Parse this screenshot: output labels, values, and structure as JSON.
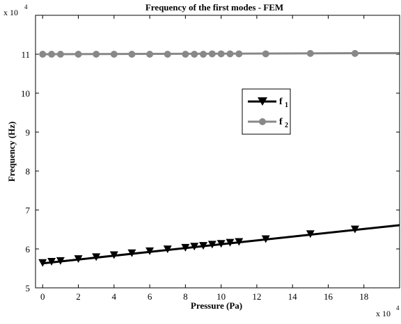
{
  "chart_data": {
    "type": "line",
    "title": "Frequency of the first modes - FEM",
    "xlabel": "Pressure (Pa)",
    "ylabel": "Frequency (Hz)",
    "x_exponent_label": "x 10",
    "x_exponent_power": "4",
    "y_exponent_label": "x 10",
    "y_exponent_power": "4",
    "xlim": [
      -0.4,
      20
    ],
    "ylim": [
      5,
      12
    ],
    "x_ticks": [
      0,
      2,
      4,
      6,
      8,
      10,
      12,
      14,
      16,
      18
    ],
    "x_tick_labels": [
      "0",
      "2",
      "4",
      "6",
      "8",
      "10",
      "12",
      "14",
      "16",
      "18"
    ],
    "y_ticks": [
      5,
      6,
      7,
      8,
      9,
      10,
      11
    ],
    "y_tick_labels": [
      "5",
      "6",
      "7",
      "8",
      "9",
      "10",
      "11"
    ],
    "grid": false,
    "legend_position": "middle-right",
    "series": [
      {
        "name": "f",
        "subscript": "1",
        "color": "#000000",
        "marker": "triangle-down",
        "line_x": [
          0,
          20
        ],
        "line_y": [
          5.63,
          6.61
        ],
        "x": [
          0,
          0.5,
          1,
          2,
          3,
          4,
          5,
          6,
          7,
          8,
          8.5,
          9,
          9.5,
          10,
          10.5,
          11,
          12.5,
          15,
          17.5
        ],
        "y": [
          5.63,
          5.66,
          5.68,
          5.73,
          5.78,
          5.83,
          5.88,
          5.93,
          5.98,
          6.02,
          6.05,
          6.07,
          6.1,
          6.12,
          6.15,
          6.17,
          6.24,
          6.37,
          6.49
        ]
      },
      {
        "name": "f",
        "subscript": "2",
        "color": "#888888",
        "marker": "circle",
        "line_x": [
          0,
          20
        ],
        "line_y": [
          11.0,
          11.03
        ],
        "x": [
          0,
          0.5,
          1,
          2,
          3,
          4,
          5,
          6,
          7,
          8,
          8.5,
          9,
          9.5,
          10,
          10.5,
          11,
          12.5,
          15,
          17.5
        ],
        "y": [
          11.0,
          11.0,
          11.0,
          11.0,
          11.0,
          11.0,
          11.0,
          11.0,
          11.0,
          11.0,
          11.0,
          11.0,
          11.01,
          11.01,
          11.01,
          11.01,
          11.01,
          11.02,
          11.02
        ]
      }
    ]
  }
}
